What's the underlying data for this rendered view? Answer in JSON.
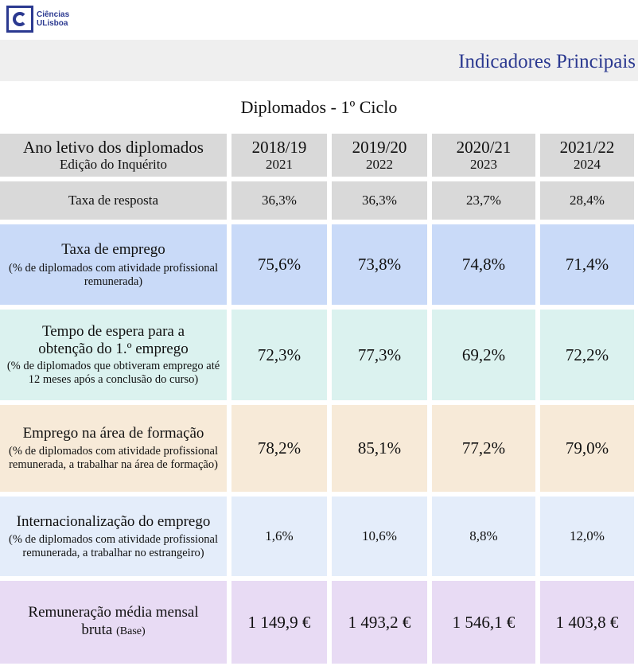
{
  "logo": {
    "line1": "Ciências",
    "line2": "ULisboa"
  },
  "header": {
    "title": "Indicadores Principais"
  },
  "subtitle": "Diplomados - 1º Ciclo",
  "table": {
    "header": {
      "label": "Ano letivo dos diplomados",
      "sublabel": "Edição do Inquérito",
      "columns": [
        {
          "year": "2018/19",
          "edition": "2021"
        },
        {
          "year": "2019/20",
          "edition": "2022"
        },
        {
          "year": "2020/21",
          "edition": "2023"
        },
        {
          "year": "2021/22",
          "edition": "2024"
        }
      ]
    },
    "rows": [
      {
        "title": "Taxa de resposta",
        "note": "",
        "values": [
          "36,3%",
          "36,3%",
          "23,7%",
          "28,4%"
        ]
      },
      {
        "title": "Taxa de emprego",
        "note": "(% de diplomados com atividade profissional remunerada)",
        "values": [
          "75,6%",
          "73,8%",
          "74,8%",
          "71,4%"
        ]
      },
      {
        "title": "Tempo de espera para a obtenção do 1.º emprego",
        "note": "(% de diplomados que obtiveram emprego até 12 meses após a conclusão do curso)",
        "values": [
          "72,3%",
          "77,3%",
          "69,2%",
          "72,2%"
        ]
      },
      {
        "title": "Emprego na área de formação",
        "note": "(% de diplomados com atividade profissional remunerada, a trabalhar na área de formação)",
        "values": [
          "78,2%",
          "85,1%",
          "77,2%",
          "79,0%"
        ]
      },
      {
        "title": "Internacionalização do emprego",
        "note": "(% de diplomados com atividade profissional remunerada, a trabalhar no estrangeiro)",
        "values": [
          "1,6%",
          "10,6%",
          "8,8%",
          "12,0%"
        ]
      },
      {
        "title": "Remuneração média mensal bruta",
        "note": "(Base)",
        "values": [
          "1 149,9 €",
          "1 493,2 €",
          "1 546,1 €",
          "1 403,8 €"
        ]
      }
    ]
  }
}
